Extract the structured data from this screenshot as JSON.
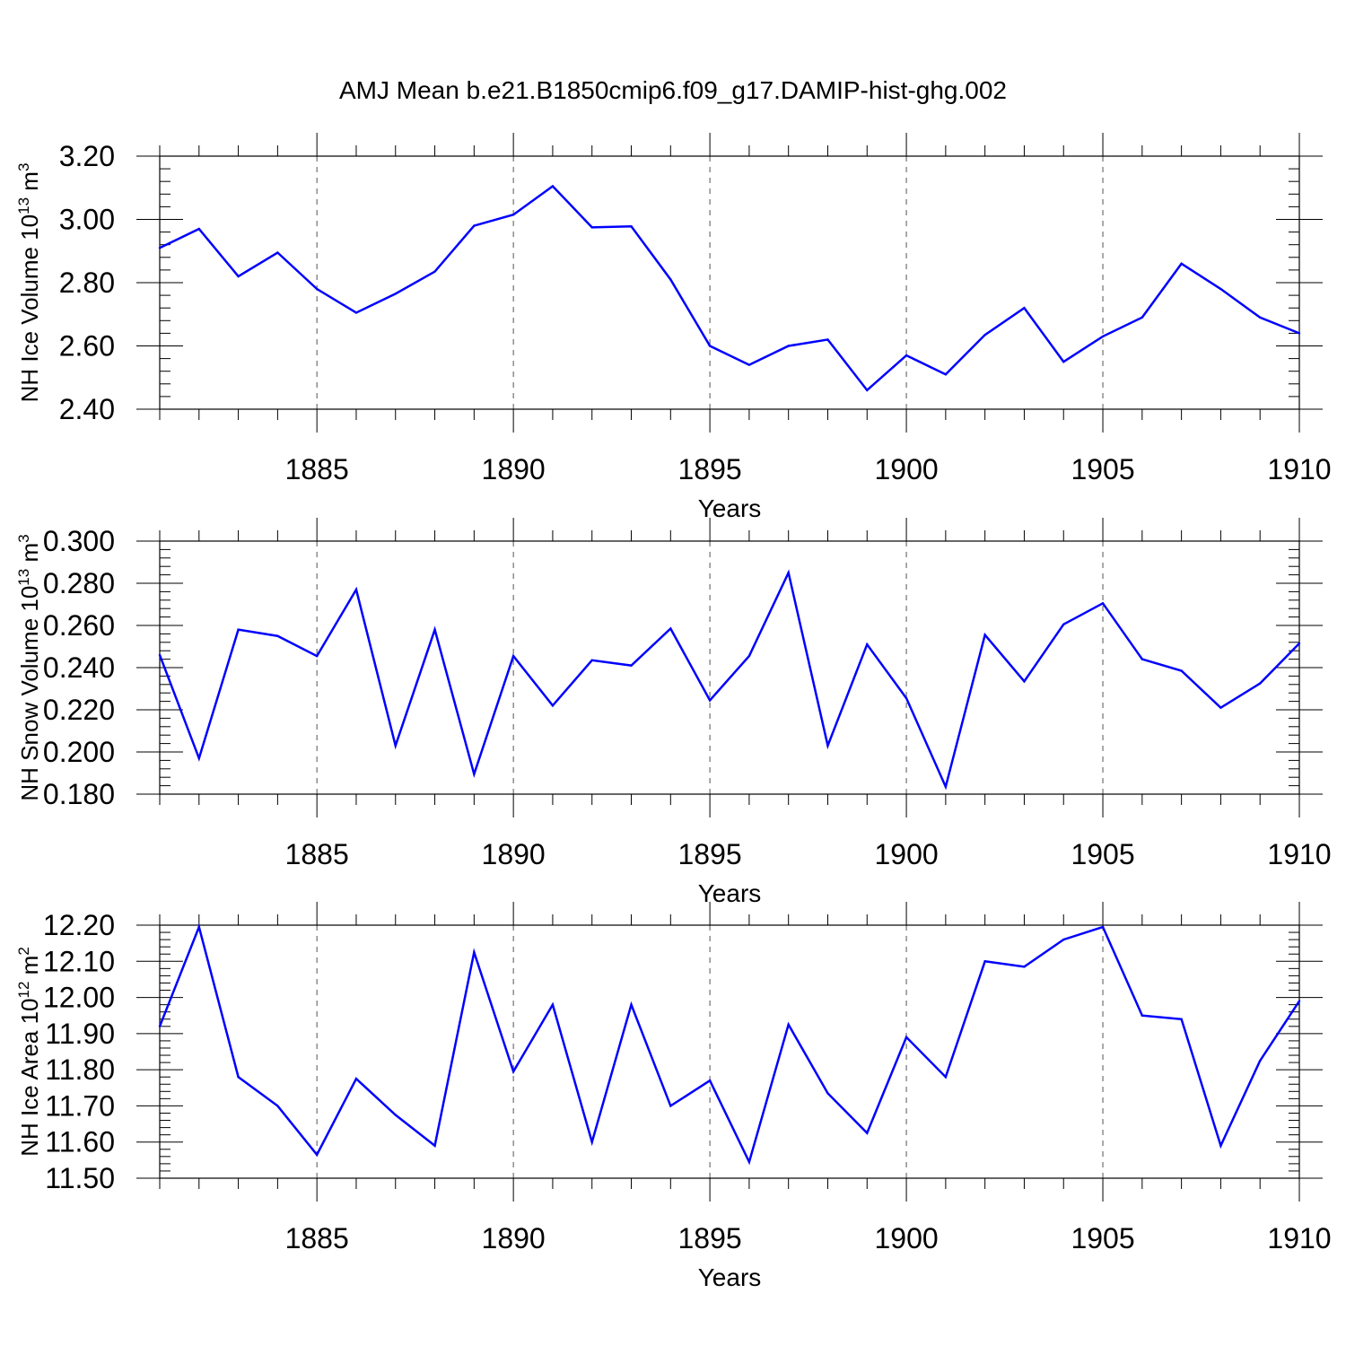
{
  "title": "AMJ Mean b.e21.B1850cmip6.f09_g17.DAMIP-hist-ghg.002",
  "colors": {
    "line": "#0000ff",
    "axis": "#000000",
    "grid": "#555555",
    "background": "#ffffff"
  },
  "chart_data": [
    {
      "type": "line",
      "ylabel": "NH Ice Volume 10",
      "ylabel_exp": "13",
      "ylabel_unit": "m",
      "ylabel_unit_exp": "3",
      "xlabel": "Years",
      "xlim": [
        1881,
        1910
      ],
      "ylim": [
        2.4,
        3.2
      ],
      "x_ticks": [
        "1885",
        "1890",
        "1895",
        "1900",
        "1905",
        "1910"
      ],
      "y_ticks": [
        "2.40",
        "2.60",
        "2.80",
        "3.00",
        "3.20"
      ],
      "grid": "vertical dashed at major x ticks",
      "x": [
        1881,
        1882,
        1883,
        1884,
        1885,
        1886,
        1887,
        1888,
        1889,
        1890,
        1891,
        1892,
        1893,
        1894,
        1895,
        1896,
        1897,
        1898,
        1899,
        1900,
        1901,
        1902,
        1903,
        1904,
        1905,
        1906,
        1907,
        1908,
        1909,
        1910
      ],
      "values": [
        2.91,
        2.97,
        2.82,
        2.895,
        2.78,
        2.705,
        2.765,
        2.835,
        2.98,
        3.015,
        3.105,
        2.975,
        2.978,
        2.81,
        2.6,
        2.54,
        2.6,
        2.62,
        2.46,
        2.57,
        2.51,
        2.635,
        2.72,
        2.55,
        2.63,
        2.69,
        2.86,
        2.78,
        2.69,
        2.64
      ]
    },
    {
      "type": "line",
      "ylabel": "NH Snow Volume 10",
      "ylabel_exp": "13",
      "ylabel_unit": "m",
      "ylabel_unit_exp": "3",
      "xlabel": "Years",
      "xlim": [
        1881,
        1910
      ],
      "ylim": [
        0.18,
        0.3
      ],
      "x_ticks": [
        "1885",
        "1890",
        "1895",
        "1900",
        "1905",
        "1910"
      ],
      "y_ticks": [
        "0.180",
        "0.200",
        "0.220",
        "0.240",
        "0.260",
        "0.280",
        "0.300"
      ],
      "grid": "vertical dashed at major x ticks",
      "x": [
        1881,
        1882,
        1883,
        1884,
        1885,
        1886,
        1887,
        1888,
        1889,
        1890,
        1891,
        1892,
        1893,
        1894,
        1895,
        1896,
        1897,
        1898,
        1899,
        1900,
        1901,
        1902,
        1903,
        1904,
        1905,
        1906,
        1907,
        1908,
        1909,
        1910
      ],
      "values": [
        0.246,
        0.197,
        0.258,
        0.255,
        0.2455,
        0.277,
        0.203,
        0.258,
        0.1895,
        0.2455,
        0.222,
        0.2435,
        0.241,
        0.2585,
        0.2245,
        0.2455,
        0.285,
        0.203,
        0.251,
        0.2255,
        0.1835,
        0.2555,
        0.2335,
        0.2605,
        0.2705,
        0.244,
        0.2385,
        0.221,
        0.2325,
        0.2515
      ]
    },
    {
      "type": "line",
      "ylabel": "NH Ice Area 10",
      "ylabel_exp": "12",
      "ylabel_unit": "m",
      "ylabel_unit_exp": "2",
      "xlabel": "Years",
      "xlim": [
        1881,
        1910
      ],
      "ylim": [
        11.5,
        12.2
      ],
      "x_ticks": [
        "1885",
        "1890",
        "1895",
        "1900",
        "1905",
        "1910"
      ],
      "y_ticks": [
        "11.50",
        "11.60",
        "11.70",
        "11.80",
        "11.90",
        "12.00",
        "12.10",
        "12.20"
      ],
      "grid": "vertical dashed at major x ticks",
      "x": [
        1881,
        1882,
        1883,
        1884,
        1885,
        1886,
        1887,
        1888,
        1889,
        1890,
        1891,
        1892,
        1893,
        1894,
        1895,
        1896,
        1897,
        1898,
        1899,
        1900,
        1901,
        1902,
        1903,
        1904,
        1905,
        1906,
        1907,
        1908,
        1909,
        1910
      ],
      "values": [
        11.92,
        12.195,
        11.78,
        11.7,
        11.565,
        11.775,
        11.675,
        11.59,
        12.125,
        11.795,
        11.98,
        11.6,
        11.98,
        11.7,
        11.77,
        11.545,
        11.925,
        11.735,
        11.625,
        11.89,
        11.78,
        12.1,
        12.085,
        12.16,
        12.195,
        11.95,
        11.94,
        11.59,
        11.825,
        11.99
      ]
    }
  ]
}
